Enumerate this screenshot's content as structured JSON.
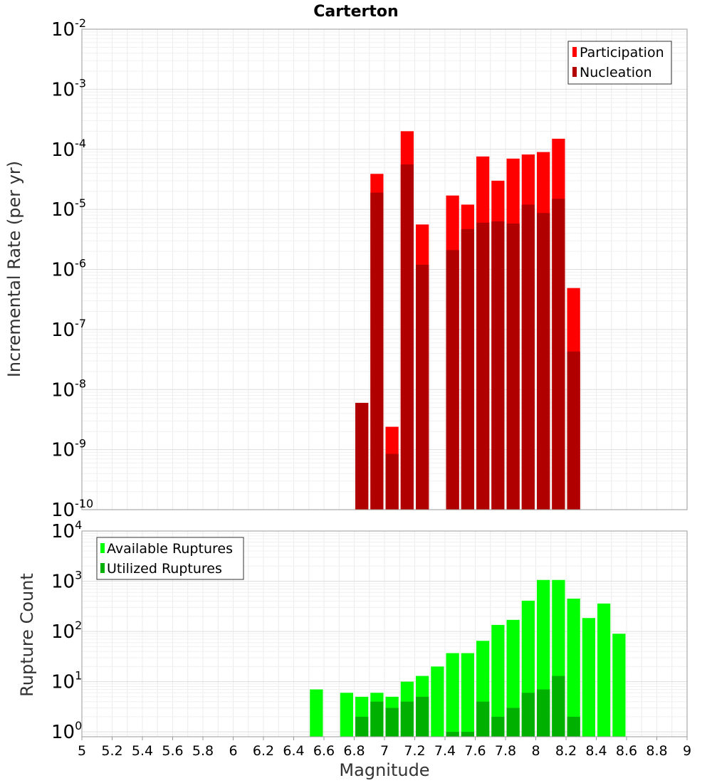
{
  "title": "Carterton",
  "xlabel": "Magnitude",
  "x_ticks": [
    "5",
    "5.2",
    "5.4",
    "5.6",
    "5.8",
    "6",
    "6.2",
    "6.4",
    "6.6",
    "6.8",
    "7",
    "7.2",
    "7.4",
    "7.6",
    "7.8",
    "8",
    "8.2",
    "8.4",
    "8.6",
    "8.8",
    "9"
  ],
  "chart_data": [
    {
      "type": "bar",
      "ylabel": "Incremental Rate (per yr)",
      "yscale": "log",
      "ylim": [
        1e-10,
        0.01
      ],
      "xlim": [
        5,
        9
      ],
      "grid": true,
      "legend_position": "top-right",
      "y_tick_exponents": [
        "-10",
        "-9",
        "-8",
        "-7",
        "-6",
        "-5",
        "-4",
        "-3",
        "-2"
      ],
      "series": [
        {
          "name": "Participation",
          "color": "#ff0000",
          "x": [
            6.85,
            6.95,
            7.05,
            7.15,
            7.25,
            7.45,
            7.55,
            7.65,
            7.75,
            7.85,
            7.95,
            8.05,
            8.15,
            8.25
          ],
          "values": [
            6e-09,
            3.9e-05,
            2.4e-09,
            0.0002,
            5.6e-06,
            1.7e-05,
            1.2e-05,
            7.6e-05,
            3e-05,
            7e-05,
            8.2e-05,
            9e-05,
            0.00015,
            4.9e-07
          ]
        },
        {
          "name": "Nucleation",
          "color": "#b00000",
          "x": [
            6.85,
            6.95,
            7.05,
            7.15,
            7.25,
            7.45,
            7.55,
            7.65,
            7.75,
            7.85,
            7.95,
            8.05,
            8.15,
            8.25
          ],
          "values": [
            6e-09,
            1.9e-05,
            8.5e-10,
            5.6e-05,
            1.2e-06,
            2.1e-06,
            4.7e-06,
            6e-06,
            6.3e-06,
            5.8e-06,
            1.2e-05,
            8.7e-06,
            1.5e-05,
            4.3e-08
          ]
        }
      ]
    },
    {
      "type": "bar",
      "ylabel": "Rupture Count",
      "yscale": "log",
      "ylim": [
        0.8,
        10000
      ],
      "xlim": [
        5,
        9
      ],
      "grid": true,
      "legend_position": "top-left",
      "y_tick_exponents": [
        "0",
        "1",
        "2",
        "3",
        "4"
      ],
      "series": [
        {
          "name": "Available Ruptures",
          "color": "#00ff00",
          "x": [
            6.55,
            6.75,
            6.85,
            6.95,
            7.05,
            7.15,
            7.25,
            7.35,
            7.45,
            7.55,
            7.65,
            7.75,
            7.85,
            7.95,
            8.05,
            8.15,
            8.25,
            8.35,
            8.45,
            8.55
          ],
          "values": [
            7,
            6,
            5,
            6,
            5,
            10,
            13,
            20,
            37,
            37,
            65,
            135,
            170,
            410,
            1060,
            1060,
            450,
            185,
            360,
            90
          ]
        },
        {
          "name": "Utilized Ruptures",
          "color": "#00b000",
          "x": [
            6.85,
            6.95,
            7.05,
            7.15,
            7.25,
            7.45,
            7.55,
            7.65,
            7.75,
            7.85,
            7.95,
            8.05,
            8.15,
            8.25
          ],
          "values": [
            2,
            4,
            3,
            4,
            5,
            1,
            1,
            4,
            2,
            3,
            6,
            7,
            13,
            2
          ]
        }
      ]
    }
  ]
}
